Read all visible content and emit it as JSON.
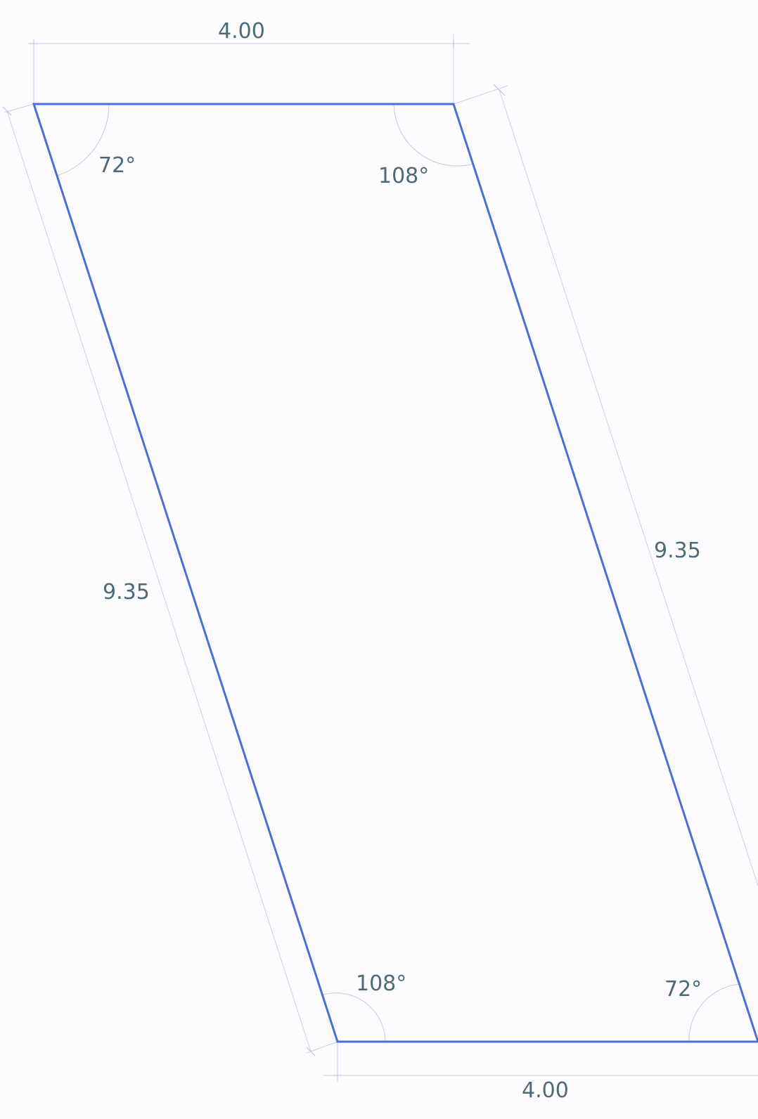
{
  "dimensions": {
    "top_length": "4.00",
    "bottom_length": "4.00",
    "left_length": "9.35",
    "right_length": "9.35"
  },
  "angles": {
    "top_left": "72°",
    "top_right": "108°",
    "bottom_left": "108°",
    "bottom_right": "72°"
  },
  "colors": {
    "outline": "#4a6fd6",
    "label": "#4c6a78",
    "construction": "#c8cce8",
    "background": "#fcfcff"
  }
}
